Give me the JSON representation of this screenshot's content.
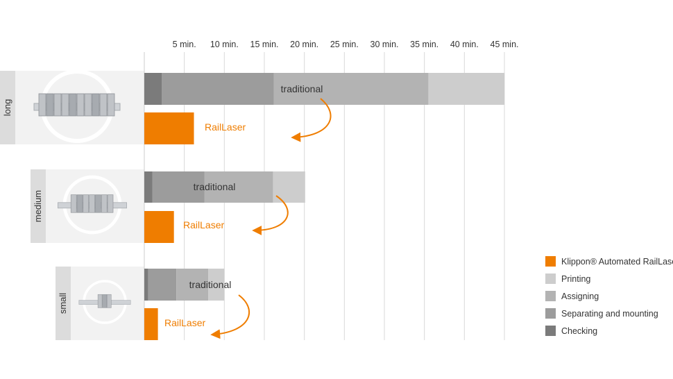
{
  "colors": {
    "railLaser": "#ef7d00",
    "printing": "#cdcdcd",
    "assigning": "#b3b3b3",
    "separating": "#9c9c9c",
    "checking": "#7b7b7b",
    "grid": "#d9d9d9",
    "axis": "#cccccc",
    "labelTab": "#dcdcdc",
    "imagePanel": "#f2f2f2"
  },
  "chart_data": {
    "type": "bar",
    "orientation": "horizontal",
    "stacked": true,
    "x_ticks": [
      {
        "value": 5,
        "label": "5 min."
      },
      {
        "value": 10,
        "label": "10 min."
      },
      {
        "value": 15,
        "label": "15 min."
      },
      {
        "value": 20,
        "label": "20 min."
      },
      {
        "value": 25,
        "label": "25 min."
      },
      {
        "value": 30,
        "label": "30 min."
      },
      {
        "value": 35,
        "label": "35 min."
      },
      {
        "value": 40,
        "label": "40 min."
      },
      {
        "value": 45,
        "label": "45 min."
      }
    ],
    "xlim": [
      0,
      45
    ],
    "grid": true,
    "legend_position": "bottom-right",
    "legend": [
      {
        "key": "railLaser",
        "label": "Klippon® Automated RailLaser",
        "color": "#ef7d00"
      },
      {
        "key": "printing",
        "label": "Printing",
        "color": "#cdcdcd"
      },
      {
        "key": "assigning",
        "label": "Assigning",
        "color": "#b3b3b3"
      },
      {
        "key": "separating",
        "label": "Separating and mounting",
        "color": "#9c9c9c"
      },
      {
        "key": "checking",
        "label": "Checking",
        "color": "#7b7b7b"
      }
    ],
    "groups": [
      {
        "name": "long",
        "traditional_label": "traditional",
        "traditional": {
          "checking": 2.2,
          "separating": 14.0,
          "assigning": 19.3,
          "printing": 9.5
        },
        "raillaser_label": "RailLaser",
        "raillaser": 6.2
      },
      {
        "name": "medium",
        "traditional_label": "traditional",
        "traditional": {
          "checking": 1.0,
          "separating": 6.5,
          "assigning": 8.6,
          "printing": 4.0
        },
        "raillaser_label": "RailLaser",
        "raillaser": 3.7
      },
      {
        "name": "small",
        "traditional_label": "traditional",
        "traditional": {
          "checking": 0.5,
          "separating": 3.5,
          "assigning": 4.0,
          "printing": 2.0
        },
        "raillaser_label": "RailLaser",
        "raillaser": 1.7
      }
    ]
  }
}
